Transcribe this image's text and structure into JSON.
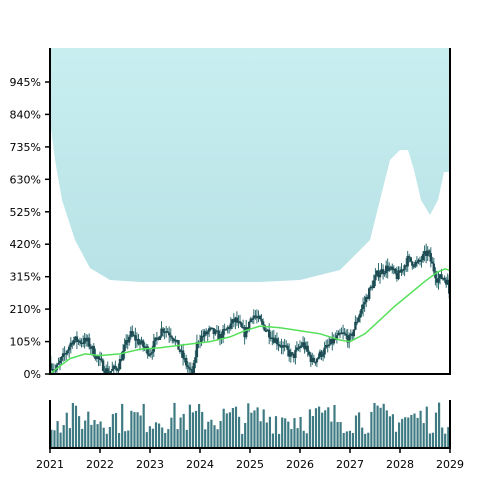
{
  "chart_data": {
    "type": "candlestick",
    "title": "",
    "xlabel": "",
    "ylabel": "",
    "xlim": [
      2021.0,
      2029.0
    ],
    "ylim": [
      0,
      1050
    ],
    "y_ticks": [
      0,
      105,
      210,
      315,
      420,
      525,
      630,
      735,
      840,
      945
    ],
    "y_tick_labels": [
      "0%",
      "105%",
      "210%",
      "315%",
      "420%",
      "525%",
      "630%",
      "735%",
      "840%",
      "945%"
    ],
    "x_ticks": [
      2021,
      2022,
      2023,
      2024,
      2025,
      2026,
      2027,
      2028,
      2029
    ],
    "x_tick_labels": [
      "2021",
      "2022",
      "2023",
      "2024",
      "2025",
      "2026",
      "2027",
      "2028",
      "2029"
    ],
    "grid": false,
    "price_path": [
      [
        2021.0,
        35
      ],
      [
        2021.1,
        10
      ],
      [
        2021.3,
        65
      ],
      [
        2021.45,
        110
      ],
      [
        2021.75,
        105
      ],
      [
        2021.95,
        50
      ],
      [
        2022.15,
        5
      ],
      [
        2022.35,
        20
      ],
      [
        2022.6,
        130
      ],
      [
        2022.8,
        100
      ],
      [
        2023.0,
        70
      ],
      [
        2023.25,
        150
      ],
      [
        2023.45,
        125
      ],
      [
        2023.7,
        40
      ],
      [
        2023.85,
        -10
      ],
      [
        2023.95,
        110
      ],
      [
        2024.2,
        140
      ],
      [
        2024.4,
        120
      ],
      [
        2024.7,
        175
      ],
      [
        2024.9,
        130
      ],
      [
        2025.05,
        195
      ],
      [
        2025.25,
        160
      ],
      [
        2025.45,
        120
      ],
      [
        2025.65,
        90
      ],
      [
        2025.85,
        55
      ],
      [
        2026.05,
        100
      ],
      [
        2026.25,
        40
      ],
      [
        2026.45,
        70
      ],
      [
        2026.65,
        105
      ],
      [
        2026.85,
        130
      ],
      [
        2027.0,
        110
      ],
      [
        2027.15,
        180
      ],
      [
        2027.35,
        255
      ],
      [
        2027.55,
        325
      ],
      [
        2027.75,
        345
      ],
      [
        2027.95,
        315
      ],
      [
        2028.15,
        370
      ],
      [
        2028.35,
        355
      ],
      [
        2028.55,
        395
      ],
      [
        2028.75,
        305
      ],
      [
        2028.85,
        315
      ],
      [
        2028.95,
        300
      ],
      [
        2029.0,
        245
      ]
    ],
    "moving_average": [
      [
        2021.0,
        0
      ],
      [
        2021.15,
        20
      ],
      [
        2021.4,
        50
      ],
      [
        2021.7,
        65
      ],
      [
        2022.0,
        60
      ],
      [
        2022.4,
        65
      ],
      [
        2022.8,
        80
      ],
      [
        2023.2,
        85
      ],
      [
        2023.7,
        95
      ],
      [
        2024.2,
        105
      ],
      [
        2024.6,
        120
      ],
      [
        2024.9,
        140
      ],
      [
        2025.2,
        155
      ],
      [
        2025.6,
        150
      ],
      [
        2026.0,
        140
      ],
      [
        2026.4,
        130
      ],
      [
        2026.8,
        110
      ],
      [
        2027.0,
        105
      ],
      [
        2027.3,
        130
      ],
      [
        2027.6,
        175
      ],
      [
        2027.9,
        220
      ],
      [
        2028.2,
        260
      ],
      [
        2028.5,
        300
      ],
      [
        2028.75,
        330
      ],
      [
        2028.9,
        340
      ],
      [
        2029.0,
        335
      ]
    ],
    "volume_bars": 130,
    "colors": {
      "background_fill": "#bfe6e8",
      "candle": "#1f4a52",
      "wick": "#2e6b70",
      "moving_average": "#55e05a",
      "volume": "#3d7a82",
      "frame": "#000000"
    }
  }
}
